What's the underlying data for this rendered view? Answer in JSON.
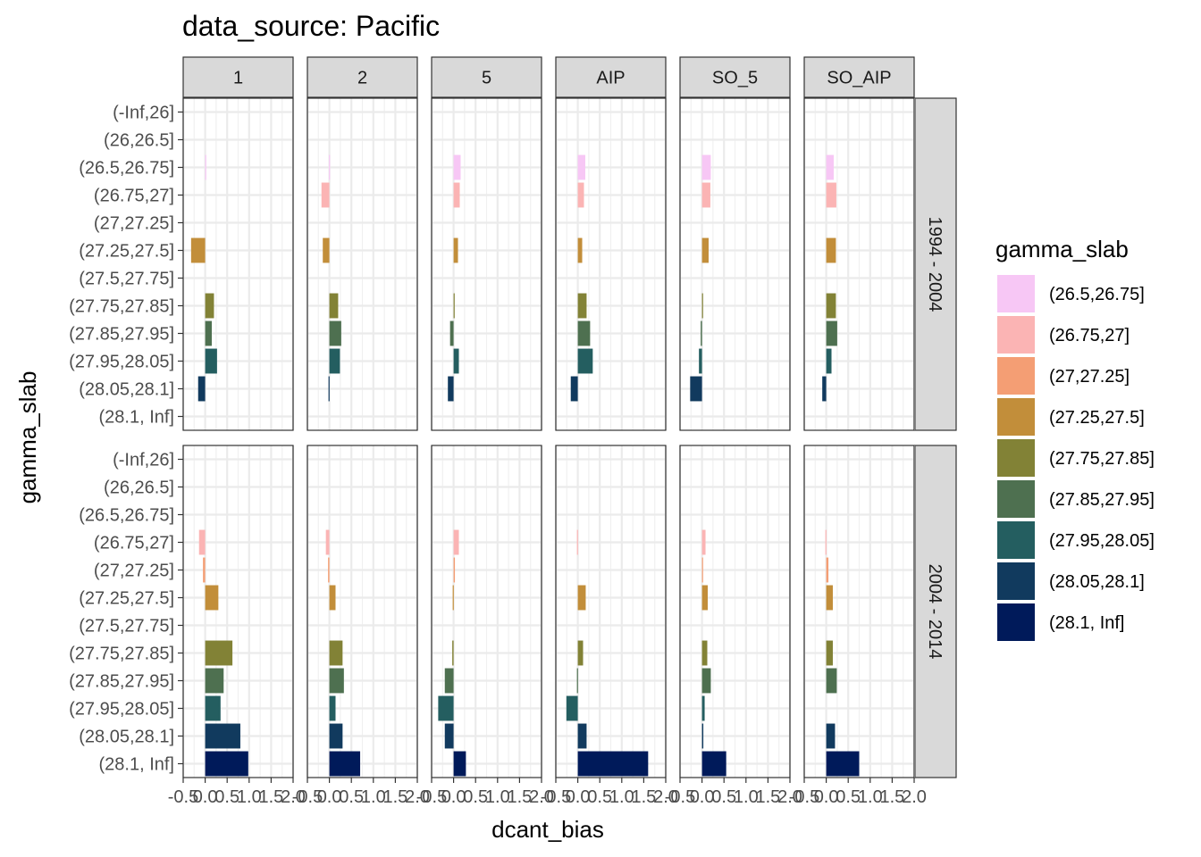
{
  "chart_data": {
    "type": "bar",
    "orientation": "horizontal",
    "title": "data_source: Pacific",
    "xlabel": "dcant_bias",
    "ylabel": "gamma_slab",
    "xlim": [
      -0.5,
      2.0
    ],
    "x_ticks": [
      -0.5,
      0.0,
      0.5,
      1.0,
      1.5,
      2.0
    ],
    "x_tick_labels": [
      "-0.5",
      "0.0",
      "0.5",
      "1.0",
      "1.5",
      "2.0"
    ],
    "grid": true,
    "categories": [
      "(-Inf,26]",
      "(26,26.5]",
      "(26.5,26.75]",
      "(26.75,27]",
      "(27,27.25]",
      "(27.25,27.5]",
      "(27.5,27.75]",
      "(27.75,27.85]",
      "(27.85,27.95]",
      "(27.95,28.05]",
      "(28.05,28.1]",
      "(28.1, Inf]"
    ],
    "column_facets": [
      "1",
      "2",
      "5",
      "AIP",
      "SO_5",
      "SO_AIP"
    ],
    "row_facets": [
      "1994 - 2004",
      "2004 - 2014"
    ],
    "legend": {
      "title": "gamma_slab",
      "position": "right",
      "entries": [
        "(26.5,26.75]",
        "(26.75,27]",
        "(27,27.25]",
        "(27.25,27.5]",
        "(27.75,27.85]",
        "(27.85,27.95]",
        "(27.95,28.05]",
        "(28.05,28.1]",
        "(28.1, Inf]"
      ],
      "colors": [
        "#F7C7F5",
        "#FBB4B4",
        "#F49E74",
        "#C28E3A",
        "#828236",
        "#4E7050",
        "#245E60",
        "#113A5E",
        "#001A5A"
      ]
    },
    "panels": [
      {
        "row": "1994 - 2004",
        "col": "1",
        "values": [
          null,
          null,
          0.02,
          null,
          null,
          -0.32,
          null,
          0.2,
          0.15,
          0.27,
          -0.16,
          null
        ]
      },
      {
        "row": "1994 - 2004",
        "col": "2",
        "values": [
          null,
          null,
          -0.01,
          -0.18,
          null,
          -0.15,
          null,
          0.2,
          0.27,
          0.24,
          -0.02,
          null
        ]
      },
      {
        "row": "1994 - 2004",
        "col": "5",
        "values": [
          null,
          null,
          0.16,
          0.14,
          null,
          0.1,
          null,
          0.02,
          -0.08,
          0.12,
          -0.13,
          null
        ]
      },
      {
        "row": "1994 - 2004",
        "col": "AIP",
        "values": [
          null,
          null,
          0.17,
          0.14,
          null,
          0.1,
          null,
          0.2,
          0.28,
          0.34,
          -0.16,
          null
        ]
      },
      {
        "row": "1994 - 2004",
        "col": "SO_5",
        "values": [
          null,
          null,
          0.2,
          0.19,
          null,
          0.15,
          null,
          0.02,
          -0.03,
          -0.07,
          -0.27,
          null
        ]
      },
      {
        "row": "1994 - 2004",
        "col": "SO_AIP",
        "values": [
          null,
          null,
          0.17,
          0.23,
          null,
          0.22,
          null,
          0.22,
          0.25,
          0.12,
          -0.09,
          null
        ]
      },
      {
        "row": "2004 - 2014",
        "col": "1",
        "values": [
          null,
          null,
          null,
          -0.14,
          -0.05,
          0.3,
          null,
          0.62,
          0.42,
          0.35,
          0.8,
          0.98
        ]
      },
      {
        "row": "2004 - 2014",
        "col": "2",
        "values": [
          null,
          null,
          null,
          -0.08,
          -0.03,
          0.14,
          null,
          0.3,
          0.33,
          0.14,
          0.3,
          0.7
        ]
      },
      {
        "row": "2004 - 2014",
        "col": "5",
        "values": [
          null,
          null,
          null,
          0.12,
          0.03,
          -0.02,
          null,
          -0.03,
          -0.2,
          -0.35,
          -0.2,
          0.28
        ]
      },
      {
        "row": "2004 - 2014",
        "col": "AIP",
        "values": [
          null,
          null,
          null,
          -0.02,
          null,
          0.18,
          null,
          0.12,
          -0.02,
          -0.26,
          0.2,
          1.6
        ]
      },
      {
        "row": "2004 - 2014",
        "col": "SO_5",
        "values": [
          null,
          null,
          null,
          0.08,
          0.01,
          0.13,
          null,
          0.12,
          0.2,
          0.06,
          0.03,
          0.55
        ]
      },
      {
        "row": "2004 - 2014",
        "col": "SO_AIP",
        "values": [
          null,
          null,
          null,
          -0.02,
          0.05,
          0.15,
          null,
          0.15,
          0.24,
          null,
          0.2,
          0.75
        ]
      }
    ]
  }
}
